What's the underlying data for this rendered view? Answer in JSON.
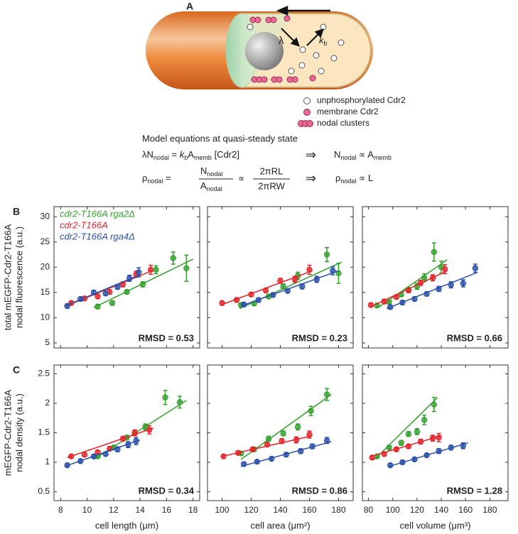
{
  "diagram": {
    "label": "A",
    "lambda": "λ",
    "kb": [
      "k",
      "b"
    ],
    "legend": [
      "unphosphorylated Cdr2",
      "membrane Cdr2",
      "nodal clusters"
    ],
    "equations_title": "Model equations at quasi-steady state",
    "eq1": [
      "λN",
      "nodal",
      " = ",
      "k",
      "b",
      "A",
      "memb",
      " [Cdr2]",
      "⇒",
      "N",
      "nodal",
      " ∝ ",
      "A",
      "memb"
    ],
    "eq2": [
      "ρ",
      "nodal",
      " =",
      "N",
      "nodal",
      "A",
      "nodal",
      "∝",
      "2πRL",
      "2πRW",
      "⇒",
      "ρ",
      "nodal",
      " ∝ ",
      "L"
    ]
  },
  "chart_data": [
    {
      "type": "scatter",
      "panel": "B",
      "ylabel": [
        "total mEGFP-Cdr2-T166A",
        "nodal fluorescence (a.u.)"
      ],
      "annotation": "RMSD = 0.53",
      "xticklabels": false,
      "xlim": [
        7.5,
        18.5
      ],
      "ylim": [
        4,
        32
      ],
      "xticks": [
        8,
        10,
        12,
        14,
        16,
        18
      ],
      "yticks": [
        5,
        10,
        15,
        20,
        25,
        30
      ],
      "series": [
        {
          "name": "cdr2-T166A rga2Δ",
          "color": "#33a02c",
          "x": [
            10.8,
            11.9,
            13,
            14.2,
            15.2,
            16.5,
            17.5
          ],
          "values": [
            12.2,
            12.9,
            15.1,
            16.6,
            19.5,
            21.8,
            19.8
          ],
          "errors": [
            0.4,
            0.4,
            0.4,
            0.5,
            0.8,
            1.2,
            2.6
          ],
          "fit_x": [
            10.5,
            18
          ],
          "fit_y": [
            12,
            21.6
          ]
        },
        {
          "name": "cdr2-T166A",
          "color": "#e3262b",
          "x": [
            8.8,
            9.8,
            10.8,
            11.7,
            12.7,
            13.7,
            14.8
          ],
          "values": [
            12.9,
            13.8,
            14.2,
            15.1,
            16.6,
            18.6,
            19.5
          ],
          "errors": [
            0.4,
            0.4,
            0.4,
            0.4,
            0.5,
            0.6,
            0.9
          ],
          "fit_x": [
            8.5,
            15
          ],
          "fit_y": [
            12.4,
            19.4
          ]
        },
        {
          "name": "cdr2-T166A rga4Δ",
          "color": "#2b50a8",
          "x": [
            8.5,
            9.5,
            10.5,
            11.4,
            12.3,
            13.2,
            13.9
          ],
          "values": [
            12.3,
            13.7,
            15,
            14.8,
            16.1,
            17.8,
            19
          ],
          "errors": [
            0.4,
            0.4,
            0.4,
            0.4,
            0.5,
            0.6,
            0.9
          ],
          "fit_x": [
            8.3,
            14
          ],
          "fit_y": [
            12.3,
            18.5
          ]
        }
      ]
    },
    {
      "type": "scatter",
      "annotation": "RMSD = 0.23",
      "xticklabels": false,
      "yticklabels": false,
      "xlim": [
        90,
        190
      ],
      "ylim": [
        4,
        32
      ],
      "xticks": [
        100,
        120,
        140,
        160,
        180
      ],
      "yticks": [
        5,
        10,
        15,
        20,
        25,
        30
      ],
      "series": [
        {
          "color": "#33a02c",
          "x": [
            113,
            122,
            132,
            142,
            152,
            172,
            180
          ],
          "values": [
            12.5,
            12.8,
            14.2,
            16.2,
            18.3,
            22.5,
            18.8
          ],
          "errors": [
            0.4,
            0.4,
            0.4,
            0.5,
            0.7,
            1.4,
            2
          ],
          "fit_x": [
            112,
            182
          ],
          "fit_y": [
            11.8,
            21
          ]
        },
        {
          "color": "#e3262b",
          "x": [
            100,
            110,
            120,
            130,
            140,
            150,
            160
          ],
          "values": [
            12.9,
            13.5,
            14.6,
            15.4,
            17.3,
            17.6,
            19.5
          ],
          "errors": [
            0.4,
            0.4,
            0.4,
            0.4,
            0.5,
            0.6,
            0.9
          ],
          "fit_x": [
            100,
            162
          ],
          "fit_y": [
            12.6,
            19.3
          ]
        },
        {
          "color": "#2b50a8",
          "x": [
            115,
            125,
            135,
            145,
            155,
            165,
            176
          ],
          "values": [
            12.6,
            13.5,
            14.5,
            15.3,
            16.2,
            17.6,
            19.3
          ],
          "errors": [
            0.4,
            0.4,
            0.4,
            0.4,
            0.5,
            0.6,
            0.8
          ],
          "fit_x": [
            113,
            180
          ],
          "fit_y": [
            12.3,
            19.3
          ]
        }
      ]
    },
    {
      "type": "scatter",
      "annotation": "RMSD = 0.66",
      "xticklabels": false,
      "yticklabels": false,
      "xlim": [
        75,
        195
      ],
      "ylim": [
        4,
        32
      ],
      "xticks": [
        80,
        100,
        120,
        140,
        160,
        180
      ],
      "yticks": [
        5,
        10,
        15,
        20,
        25,
        30
      ],
      "series": [
        {
          "color": "#33a02c",
          "x": [
            87,
            97,
            107,
            113,
            120,
            126,
            134,
            140
          ],
          "values": [
            12.4,
            13.1,
            14.6,
            15.5,
            16.2,
            17.9,
            23,
            20
          ],
          "errors": [
            0.4,
            0.4,
            0.4,
            0.5,
            0.6,
            0.8,
            1.8,
            1.2
          ],
          "fit_x": [
            88,
            145
          ],
          "fit_y": [
            12,
            21.5
          ]
        },
        {
          "color": "#e3262b",
          "x": [
            82,
            93,
            103,
            113,
            123,
            133,
            143
          ],
          "values": [
            12.5,
            13.2,
            14.1,
            15.4,
            16.9,
            17.9,
            19.6
          ],
          "errors": [
            0.4,
            0.4,
            0.4,
            0.4,
            0.5,
            0.6,
            0.9
          ],
          "fit_x": [
            82,
            145
          ],
          "fit_y": [
            12.2,
            19.3
          ]
        },
        {
          "color": "#2b50a8",
          "x": [
            98,
            108,
            118,
            128,
            138,
            148,
            158,
            168
          ],
          "values": [
            12.1,
            13,
            13.7,
            14.7,
            15.7,
            16.5,
            16.8,
            19.8
          ],
          "errors": [
            0.4,
            0.4,
            0.4,
            0.4,
            0.5,
            0.6,
            0.7,
            0.8
          ],
          "fit_x": [
            95,
            170
          ],
          "fit_y": [
            11.8,
            19
          ]
        }
      ]
    },
    {
      "type": "scatter",
      "panel": "C",
      "ylabel": [
        "mEGFP-Cdr2-T166A",
        "nodal density (a.u.)"
      ],
      "annotation": "RMSD = 0.34",
      "xlabel": "cell length (μm)",
      "xlim": [
        7.5,
        18.5
      ],
      "ylim": [
        0.35,
        2.65
      ],
      "xticks": [
        8,
        10,
        12,
        14,
        16,
        18
      ],
      "yticks": [
        0.5,
        1,
        1.5,
        2,
        2.5
      ],
      "series": [
        {
          "color": "#33a02c",
          "x": [
            10.8,
            12,
            13,
            13.6,
            14.4,
            15.9,
            17
          ],
          "values": [
            1.1,
            1.25,
            1.42,
            1.5,
            1.6,
            2.1,
            2.02
          ],
          "errors": [
            0.03,
            0.03,
            0.04,
            0.04,
            0.05,
            0.12,
            0.1
          ],
          "fit_x": [
            10.5,
            17.5
          ],
          "fit_y": [
            1.05,
            2.05
          ]
        },
        {
          "color": "#e3262b",
          "x": [
            8.8,
            9.8,
            10.8,
            11.7,
            12.7,
            13.6,
            14.7
          ],
          "values": [
            1.1,
            1.13,
            1.17,
            1.23,
            1.4,
            1.5,
            1.55
          ],
          "errors": [
            0.03,
            0.03,
            0.03,
            0.03,
            0.04,
            0.05,
            0.07
          ],
          "fit_x": [
            8.5,
            15
          ],
          "fit_y": [
            1.08,
            1.58
          ]
        },
        {
          "color": "#2b50a8",
          "x": [
            8.5,
            9.5,
            10.5,
            11.4,
            12.3,
            13.1,
            13.7
          ],
          "values": [
            0.95,
            1.02,
            1.1,
            1.14,
            1.22,
            1.3,
            1.36
          ],
          "errors": [
            0.03,
            0.03,
            0.03,
            0.03,
            0.04,
            0.05,
            0.06
          ],
          "fit_x": [
            8.3,
            14
          ],
          "fit_y": [
            0.93,
            1.38
          ]
        }
      ]
    },
    {
      "type": "scatter",
      "annotation": "RMSD = 0.86",
      "xlabel": "cell area (μm²)",
      "yticklabels": false,
      "xlim": [
        90,
        190
      ],
      "ylim": [
        0.35,
        2.65
      ],
      "xticks": [
        100,
        120,
        140,
        160,
        180
      ],
      "yticks": [
        0.5,
        1,
        1.5,
        2,
        2.5
      ],
      "series": [
        {
          "color": "#33a02c",
          "x": [
            113,
            122,
            132,
            142,
            152,
            161,
            172
          ],
          "values": [
            1.15,
            1.22,
            1.4,
            1.49,
            1.6,
            1.87,
            2.15
          ],
          "errors": [
            0.03,
            0.03,
            0.04,
            0.04,
            0.05,
            0.08,
            0.1
          ],
          "fit_x": [
            113,
            175
          ],
          "fit_y": [
            1.05,
            2.15
          ]
        },
        {
          "color": "#e3262b",
          "x": [
            101,
            111,
            121,
            131,
            141,
            151,
            160
          ],
          "values": [
            1.1,
            1.16,
            1.22,
            1.3,
            1.36,
            1.38,
            1.47
          ],
          "errors": [
            0.03,
            0.03,
            0.03,
            0.03,
            0.04,
            0.05,
            0.06
          ],
          "fit_x": [
            100,
            162
          ],
          "fit_y": [
            1.1,
            1.45
          ]
        },
        {
          "color": "#2b50a8",
          "x": [
            115,
            124,
            134,
            144,
            154,
            162,
            172
          ],
          "values": [
            0.97,
            1.01,
            1.06,
            1.13,
            1.19,
            1.27,
            1.37
          ],
          "errors": [
            0.03,
            0.03,
            0.03,
            0.03,
            0.04,
            0.04,
            0.05
          ],
          "fit_x": [
            113,
            175
          ],
          "fit_y": [
            0.93,
            1.35
          ]
        }
      ]
    },
    {
      "type": "scatter",
      "annotation": "RMSD = 1.28",
      "xlabel": "cell volume (μm³)",
      "yticklabels": false,
      "xlim": [
        75,
        195
      ],
      "ylim": [
        0.35,
        2.65
      ],
      "xticks": [
        80,
        100,
        120,
        140,
        160,
        180
      ],
      "yticks": [
        0.5,
        1,
        1.5,
        2,
        2.5
      ],
      "series": [
        {
          "color": "#33a02c",
          "x": [
            87,
            97,
            107,
            113,
            120,
            126,
            134
          ],
          "values": [
            1.1,
            1.25,
            1.33,
            1.48,
            1.52,
            1.72,
            1.98
          ],
          "errors": [
            0.03,
            0.03,
            0.04,
            0.04,
            0.05,
            0.08,
            0.12
          ],
          "fit_x": [
            85,
            137
          ],
          "fit_y": [
            1.05,
            2.1
          ]
        },
        {
          "color": "#e3262b",
          "x": [
            83,
            93,
            103,
            113,
            123,
            133,
            138
          ],
          "values": [
            1.08,
            1.14,
            1.22,
            1.27,
            1.35,
            1.41,
            1.42
          ],
          "errors": [
            0.03,
            0.03,
            0.03,
            0.03,
            0.04,
            0.05,
            0.07
          ],
          "fit_x": [
            82,
            140
          ],
          "fit_y": [
            1.1,
            1.45
          ]
        },
        {
          "color": "#2b50a8",
          "x": [
            98,
            108,
            118,
            128,
            138,
            148,
            158
          ],
          "values": [
            0.95,
            1,
            1.05,
            1.12,
            1.19,
            1.25,
            1.28
          ],
          "errors": [
            0.03,
            0.03,
            0.03,
            0.03,
            0.04,
            0.04,
            0.05
          ],
          "fit_x": [
            97,
            162
          ],
          "fit_y": [
            0.93,
            1.33
          ]
        }
      ]
    }
  ]
}
